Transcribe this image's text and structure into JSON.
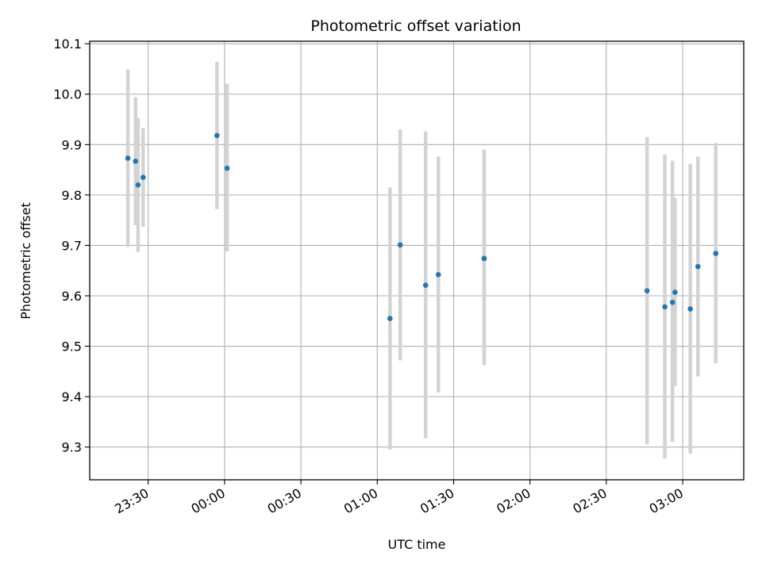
{
  "chart_data": {
    "type": "scatter",
    "title": "Photometric offset variation",
    "xlabel": "UTC time",
    "ylabel": "Photometric offset",
    "grid": true,
    "x_axis": {
      "ticks": [
        "23:30",
        "00:00",
        "00:30",
        "01:00",
        "01:30",
        "02:00",
        "02:30",
        "03:00"
      ],
      "range": [
        "23:07",
        "03:24"
      ]
    },
    "y_axis": {
      "range": [
        9.235,
        10.105
      ],
      "ticks": [
        "9.3",
        "9.4",
        "9.5",
        "9.6",
        "9.7",
        "9.8",
        "9.9",
        "10.0",
        "10.1"
      ]
    },
    "marker_color": "#1f77b4",
    "errorbar_color": "#d3d3d3",
    "points": [
      {
        "x": "23:22",
        "y": 9.873,
        "low": 9.697,
        "high": 10.049
      },
      {
        "x": "23:25",
        "y": 9.867,
        "low": 9.74,
        "high": 9.994
      },
      {
        "x": "23:26",
        "y": 9.82,
        "low": 9.687,
        "high": 9.953
      },
      {
        "x": "23:28",
        "y": 9.835,
        "low": 9.737,
        "high": 9.933
      },
      {
        "x": "23:57",
        "y": 9.918,
        "low": 9.772,
        "high": 10.064
      },
      {
        "x": "00:01",
        "y": 9.853,
        "low": 9.688,
        "high": 10.021
      },
      {
        "x": "01:05",
        "y": 9.555,
        "low": 9.295,
        "high": 9.815
      },
      {
        "x": "01:09",
        "y": 9.701,
        "low": 9.472,
        "high": 9.93
      },
      {
        "x": "01:19",
        "y": 9.621,
        "low": 9.317,
        "high": 9.926
      },
      {
        "x": "01:24",
        "y": 9.642,
        "low": 9.408,
        "high": 9.876
      },
      {
        "x": "01:42",
        "y": 9.674,
        "low": 9.462,
        "high": 9.89
      },
      {
        "x": "01:42",
        "y": 9.674,
        "low": 9.483,
        "high": 9.865
      },
      {
        "x": "02:46",
        "y": 9.61,
        "low": 9.305,
        "high": 9.915
      },
      {
        "x": "02:53",
        "y": 9.578,
        "low": 9.277,
        "high": 9.88
      },
      {
        "x": "02:56",
        "y": 9.587,
        "low": 9.31,
        "high": 9.868
      },
      {
        "x": "02:57",
        "y": 9.607,
        "low": 9.421,
        "high": 9.794
      },
      {
        "x": "03:03",
        "y": 9.574,
        "low": 9.287,
        "high": 9.862
      },
      {
        "x": "03:06",
        "y": 9.658,
        "low": 9.44,
        "high": 9.876
      },
      {
        "x": "03:13",
        "y": 9.684,
        "low": 9.466,
        "high": 9.903
      }
    ]
  }
}
